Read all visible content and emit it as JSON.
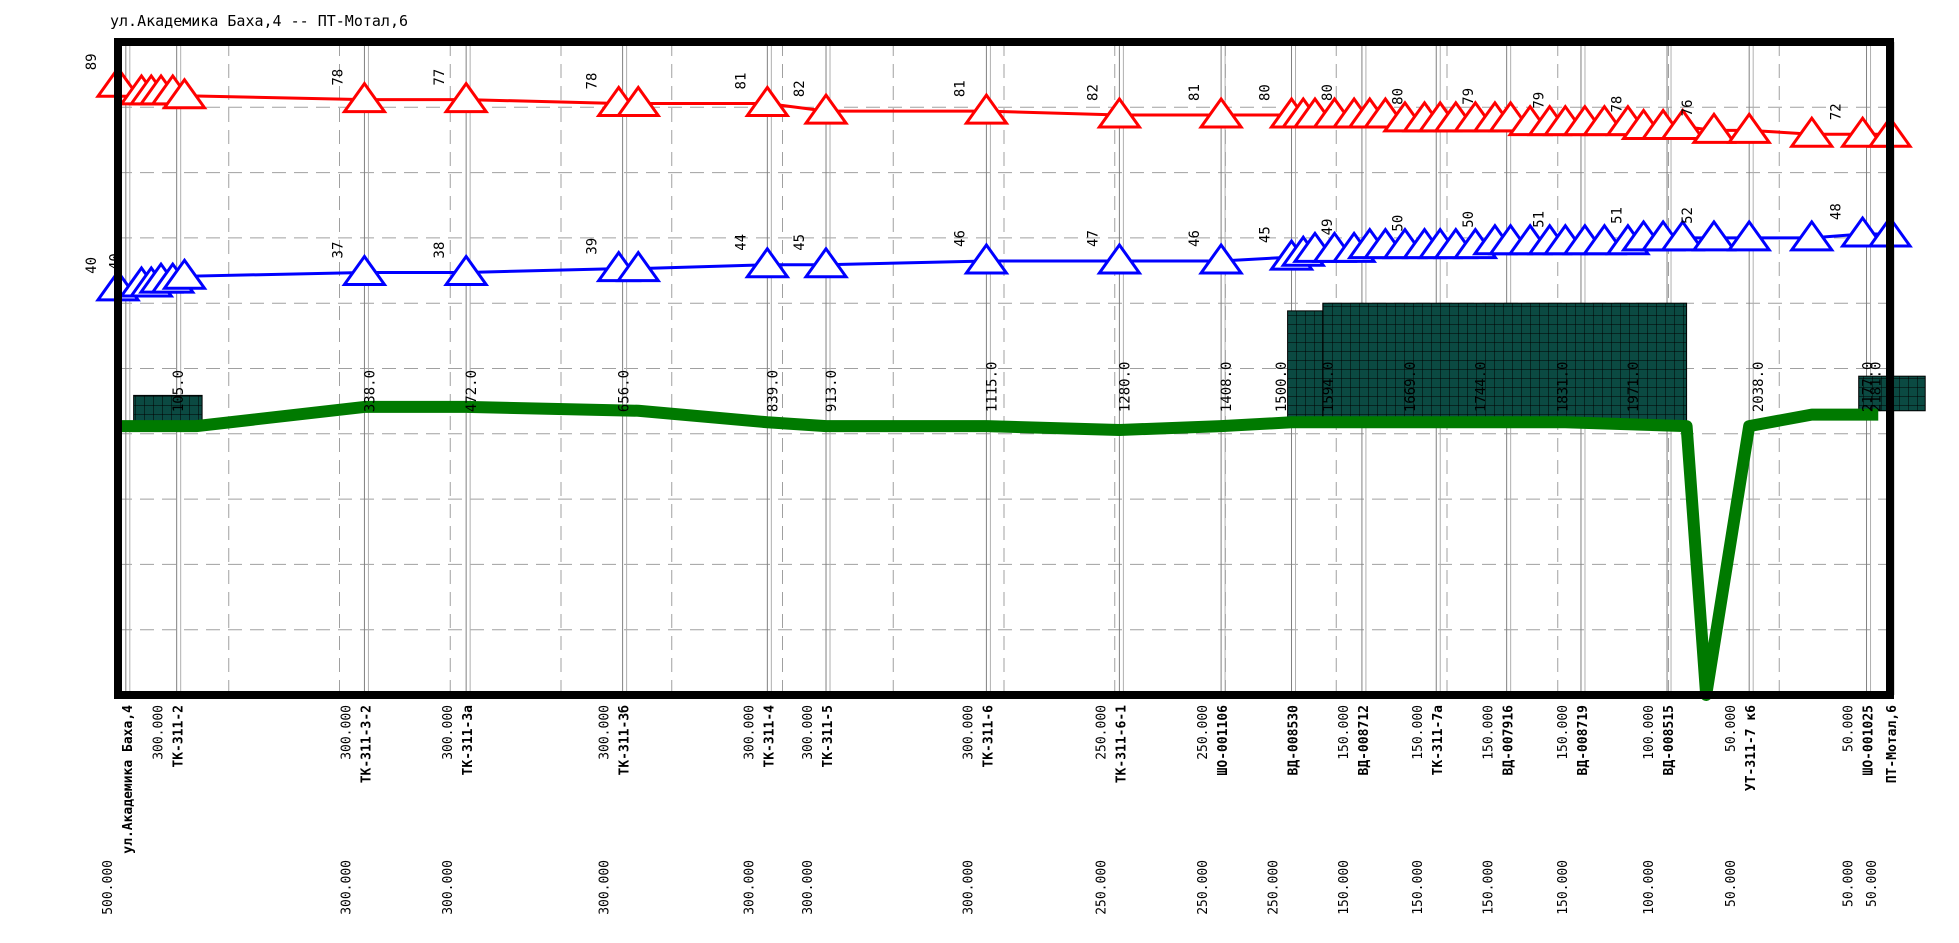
{
  "title": "ул.Академика Баха,4 -- ПТ-Мотал,6",
  "chart_data": {
    "type": "line",
    "title": "ул.Академика Баха,4 -- ПТ-Мотал,6",
    "colors": {
      "supply_line": "#ff0000",
      "return_line": "#0000ff",
      "ground_line": "#007a00",
      "block_fill": "#0b4a42",
      "frame": "#000000",
      "grid": "#a0a0a0"
    },
    "xlim": [
      0,
      4400
    ],
    "grid": true,
    "series": [
      {
        "key": "supply",
        "marker": "triangle",
        "points": [
          {
            "x": 0,
            "y": 89,
            "label": "89"
          },
          {
            "x": 60,
            "y": 87
          },
          {
            "x": 85,
            "y": 87
          },
          {
            "x": 110,
            "y": 87
          },
          {
            "x": 140,
            "y": 87
          },
          {
            "x": 170,
            "y": 86
          },
          {
            "x": 630,
            "y": 85,
            "label": "78"
          },
          {
            "x": 890,
            "y": 85,
            "label": "77"
          },
          {
            "x": 1280,
            "y": 84,
            "label": "78"
          },
          {
            "x": 1330,
            "y": 84
          },
          {
            "x": 1660,
            "y": 84,
            "label": "81"
          },
          {
            "x": 1810,
            "y": 82,
            "label": "82"
          },
          {
            "x": 2220,
            "y": 82,
            "label": "81"
          },
          {
            "x": 2560,
            "y": 81,
            "label": "82"
          },
          {
            "x": 2820,
            "y": 81,
            "label": "81"
          },
          {
            "x": 3000,
            "y": 81,
            "label": "80"
          },
          {
            "x": 3030,
            "y": 81
          },
          {
            "x": 3060,
            "y": 81
          },
          {
            "x": 3110,
            "y": 81
          },
          {
            "x": 3160,
            "y": 81,
            "label": "80"
          },
          {
            "x": 3200,
            "y": 81
          },
          {
            "x": 3240,
            "y": 81
          },
          {
            "x": 3290,
            "y": 80
          },
          {
            "x": 3340,
            "y": 80,
            "label": "80"
          },
          {
            "x": 3380,
            "y": 80
          },
          {
            "x": 3420,
            "y": 80
          },
          {
            "x": 3470,
            "y": 80
          },
          {
            "x": 3520,
            "y": 80,
            "label": "79"
          },
          {
            "x": 3560,
            "y": 80
          },
          {
            "x": 3610,
            "y": 79
          },
          {
            "x": 3660,
            "y": 79
          },
          {
            "x": 3700,
            "y": 79,
            "label": "79"
          },
          {
            "x": 3750,
            "y": 79
          },
          {
            "x": 3800,
            "y": 79
          },
          {
            "x": 3860,
            "y": 79
          },
          {
            "x": 3900,
            "y": 78,
            "label": "78"
          },
          {
            "x": 3950,
            "y": 78
          },
          {
            "x": 4000,
            "y": 78
          },
          {
            "x": 4080,
            "y": 77,
            "label": "76"
          },
          {
            "x": 4170,
            "y": 77
          },
          {
            "x": 4330,
            "y": 76
          },
          {
            "x": 4460,
            "y": 76,
            "label": "72"
          },
          {
            "x": 4530,
            "y": 76
          }
        ]
      },
      {
        "key": "return",
        "marker": "triangle",
        "points": [
          {
            "x": 0,
            "y": 36,
            "label": "40"
          },
          {
            "x": 60,
            "y": 37,
            "label": "40"
          },
          {
            "x": 85,
            "y": 37
          },
          {
            "x": 110,
            "y": 38
          },
          {
            "x": 140,
            "y": 38
          },
          {
            "x": 170,
            "y": 39
          },
          {
            "x": 630,
            "y": 40,
            "label": "37"
          },
          {
            "x": 890,
            "y": 40,
            "label": "38"
          },
          {
            "x": 1280,
            "y": 41,
            "label": "39"
          },
          {
            "x": 1330,
            "y": 41
          },
          {
            "x": 1660,
            "y": 42,
            "label": "44"
          },
          {
            "x": 1810,
            "y": 42,
            "label": "45"
          },
          {
            "x": 2220,
            "y": 43,
            "label": "46"
          },
          {
            "x": 2560,
            "y": 43,
            "label": "47"
          },
          {
            "x": 2820,
            "y": 43,
            "label": "46"
          },
          {
            "x": 3000,
            "y": 44,
            "label": "45"
          },
          {
            "x": 3030,
            "y": 45
          },
          {
            "x": 3060,
            "y": 46
          },
          {
            "x": 3110,
            "y": 46
          },
          {
            "x": 3160,
            "y": 46,
            "label": "49"
          },
          {
            "x": 3200,
            "y": 47
          },
          {
            "x": 3240,
            "y": 47
          },
          {
            "x": 3290,
            "y": 47
          },
          {
            "x": 3340,
            "y": 47,
            "label": "50"
          },
          {
            "x": 3380,
            "y": 47
          },
          {
            "x": 3420,
            "y": 47
          },
          {
            "x": 3470,
            "y": 47
          },
          {
            "x": 3520,
            "y": 48,
            "label": "50"
          },
          {
            "x": 3560,
            "y": 48
          },
          {
            "x": 3610,
            "y": 48
          },
          {
            "x": 3660,
            "y": 48
          },
          {
            "x": 3700,
            "y": 48,
            "label": "51"
          },
          {
            "x": 3750,
            "y": 48
          },
          {
            "x": 3800,
            "y": 48
          },
          {
            "x": 3860,
            "y": 48
          },
          {
            "x": 3900,
            "y": 49,
            "label": "51"
          },
          {
            "x": 3950,
            "y": 49
          },
          {
            "x": 4000,
            "y": 49
          },
          {
            "x": 4080,
            "y": 49,
            "label": "52"
          },
          {
            "x": 4170,
            "y": 49
          },
          {
            "x": 4330,
            "y": 49
          },
          {
            "x": 4460,
            "y": 50,
            "label": "48"
          },
          {
            "x": 4530,
            "y": 50
          }
        ]
      }
    ],
    "ground": {
      "points": [
        {
          "x": 0,
          "y": 0
        },
        {
          "x": 110,
          "y": 0
        },
        {
          "x": 200,
          "y": 0
        },
        {
          "x": 630,
          "y": 5
        },
        {
          "x": 890,
          "y": 5
        },
        {
          "x": 1330,
          "y": 4
        },
        {
          "x": 1660,
          "y": 1
        },
        {
          "x": 1810,
          "y": 0
        },
        {
          "x": 2220,
          "y": 0
        },
        {
          "x": 2560,
          "y": -1
        },
        {
          "x": 2820,
          "y": 0
        },
        {
          "x": 3000,
          "y": 1
        },
        {
          "x": 3700,
          "y": 1
        },
        {
          "x": 4010,
          "y": 0
        },
        {
          "x": 4060,
          "y": -70
        },
        {
          "x": 4170,
          "y": 0
        },
        {
          "x": 4330,
          "y": 3
        },
        {
          "x": 4500,
          "y": 3
        }
      ],
      "labels": [
        {
          "x": 140,
          "text": "105.0"
        },
        {
          "x": 630,
          "text": "338.0"
        },
        {
          "x": 890,
          "text": "472.0"
        },
        {
          "x": 1280,
          "text": "656.0"
        },
        {
          "x": 1660,
          "text": "839.0"
        },
        {
          "x": 1810,
          "text": "913.0"
        },
        {
          "x": 2220,
          "text": "1115.0"
        },
        {
          "x": 2560,
          "text": "1280.0"
        },
        {
          "x": 2820,
          "text": "1408.0"
        },
        {
          "x": 2960,
          "text": "1500.0"
        },
        {
          "x": 3080,
          "text": "1594.0"
        },
        {
          "x": 3290,
          "text": "1669.0"
        },
        {
          "x": 3470,
          "text": "1744.0"
        },
        {
          "x": 3680,
          "text": "1831.0"
        },
        {
          "x": 3860,
          "text": "1971.0"
        },
        {
          "x": 4180,
          "text": "2038.0"
        },
        {
          "x": 4460,
          "text": "2177.0"
        },
        {
          "x": 4480,
          "text": "2181.0"
        }
      ]
    },
    "blocks": [
      {
        "x0": 40,
        "x1": 215,
        "y0": 0,
        "y1": 8
      },
      {
        "x0": 2990,
        "x1": 3080,
        "y0": 0,
        "y1": 30
      },
      {
        "x0": 3080,
        "x1": 4010,
        "y0": 0,
        "y1": 32
      },
      {
        "x0": 4450,
        "x1": 4620,
        "y0": 4,
        "y1": 13
      }
    ],
    "nodes": [
      {
        "x": 20,
        "name": "ул.Академика Баха,4",
        "below": "500.000"
      },
      {
        "x": 150,
        "name": "ТК-311-2",
        "above": "300.000"
      },
      {
        "x": 630,
        "name": "ТК-311-3-2",
        "above": "300.000",
        "below": "300.000"
      },
      {
        "x": 890,
        "name": "ТК-311-3а",
        "above": "300.000",
        "below": "300.000"
      },
      {
        "x": 1290,
        "name": "ТК-311-3б",
        "above": "300.000",
        "below": "300.000"
      },
      {
        "x": 1660,
        "name": "ТК-311-4",
        "above": "300.000",
        "below": "300.000"
      },
      {
        "x": 1810,
        "name": "ТК-311-5",
        "above": "300.000",
        "below": "300.000"
      },
      {
        "x": 2220,
        "name": "ТК-311-6",
        "above": "300.000",
        "below": "300.000"
      },
      {
        "x": 2560,
        "name": "ТК-311-6-1",
        "above": "250.000",
        "below": "250.000"
      },
      {
        "x": 2820,
        "name": "ШО-001106",
        "above": "250.000",
        "below": "250.000"
      },
      {
        "x": 3000,
        "name": "ВД-008530",
        "above": "",
        "below": "250.000"
      },
      {
        "x": 3180,
        "name": "ВД-008712",
        "above": "150.000",
        "below": "150.000"
      },
      {
        "x": 3370,
        "name": "ТК-311-7а",
        "above": "150.000",
        "below": "150.000"
      },
      {
        "x": 3550,
        "name": "ВД-007916",
        "above": "150.000",
        "below": "150.000"
      },
      {
        "x": 3740,
        "name": "ВД-008719",
        "above": "150.000",
        "below": "150.000"
      },
      {
        "x": 3960,
        "name": "ВД-008515",
        "above": "100.000",
        "below": "100.000"
      },
      {
        "x": 4170,
        "name": "УТ-311-7 к6",
        "above": "50.000",
        "below": "50.000"
      },
      {
        "x": 4470,
        "name": "ШО-001025",
        "above": "50.000",
        "below": "50.000"
      },
      {
        "x": 4530,
        "name": "ПТ-Мотал,6",
        "above": "",
        "below": "50.000"
      }
    ]
  }
}
